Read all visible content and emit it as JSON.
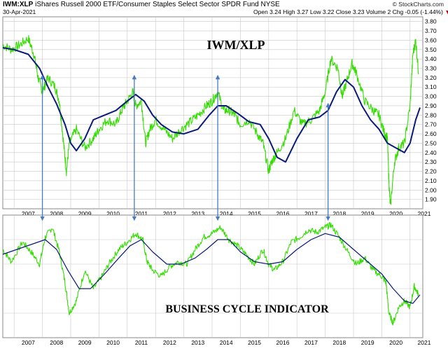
{
  "header": {
    "symbol": "IWM:XLP",
    "description": "iShares Russell 2000 ETF/Consumer Staples Select Sector SPDR Fund",
    "exchange": "NYSE",
    "brand": "© StockCharts.com",
    "date": "30-Apr-2021",
    "open_label": "Open",
    "open": "3.24",
    "high_label": "High",
    "high": "3.27",
    "low_label": "Low",
    "low": "3.22",
    "close_label": "Close",
    "close": "3.23",
    "volume_label": "Volume",
    "volume": "2",
    "chg_label": "Chg",
    "chg": "-0.05 (-1.44%)",
    "chg_marker": "▼"
  },
  "colors": {
    "price": "#33dd00",
    "ma": "#0b1a7a",
    "arrow": "#4a79c4",
    "grid": "#c8c8c8",
    "border": "#888888",
    "down": "#c00000"
  },
  "chart_data": [
    {
      "type": "line",
      "title": "IWM/XLP",
      "x_ticks": [
        "2007",
        "2008",
        "2009",
        "2010",
        "2011",
        "2012",
        "2013",
        "2014",
        "2015",
        "2016",
        "2017",
        "2018",
        "2019",
        "2020",
        "2021"
      ],
      "y_ticks": [
        "3.80",
        "3.70",
        "3.60",
        "3.50",
        "3.40",
        "3.30",
        "3.20",
        "3.10",
        "3.00",
        "2.90",
        "2.80",
        "2.70",
        "2.60",
        "2.50",
        "2.40",
        "2.30",
        "2.20",
        "2.10",
        "2.00",
        "1.90"
      ],
      "ylim": [
        1.8,
        3.85
      ],
      "xlim": [
        2006.6,
        2021.45
      ],
      "grid": true,
      "series": [
        {
          "role": "price",
          "x": [
            2006.6,
            2006.9,
            2007.2,
            2007.5,
            2007.7,
            2007.85,
            2008.0,
            2008.2,
            2008.45,
            2008.6,
            2008.75,
            2008.85,
            2008.95,
            2009.2,
            2009.5,
            2009.8,
            2010.0,
            2010.3,
            2010.6,
            2010.8,
            2011.0,
            2011.2,
            2011.3,
            2011.5,
            2011.65,
            2011.8,
            2012.0,
            2012.3,
            2012.6,
            2012.9,
            2013.2,
            2013.5,
            2013.8,
            2014.0,
            2014.2,
            2014.4,
            2014.6,
            2014.8,
            2015.0,
            2015.3,
            2015.6,
            2015.8,
            2016.0,
            2016.1,
            2016.3,
            2016.6,
            2016.9,
            2017.2,
            2017.5,
            2017.8,
            2018.0,
            2018.2,
            2018.45,
            2018.6,
            2018.75,
            2018.95,
            2019.1,
            2019.4,
            2019.7,
            2019.9,
            2020.1,
            2020.2,
            2020.25,
            2020.3,
            2020.45,
            2020.6,
            2020.8,
            2021.0,
            2021.1,
            2021.2,
            2021.3
          ],
          "values": [
            3.55,
            3.5,
            3.55,
            3.62,
            3.45,
            3.2,
            3.05,
            3.2,
            3.1,
            2.95,
            2.5,
            2.2,
            2.5,
            2.65,
            2.45,
            2.55,
            2.65,
            2.75,
            2.7,
            2.85,
            2.95,
            3.05,
            2.9,
            2.95,
            2.5,
            2.65,
            2.75,
            2.65,
            2.55,
            2.65,
            2.72,
            2.8,
            2.9,
            2.95,
            3.05,
            2.85,
            2.85,
            2.8,
            2.7,
            2.75,
            2.6,
            2.5,
            2.2,
            2.3,
            2.4,
            2.55,
            2.85,
            2.7,
            2.75,
            2.85,
            3.05,
            3.4,
            3.3,
            3.0,
            3.15,
            3.35,
            3.25,
            2.95,
            2.85,
            2.8,
            2.6,
            2.55,
            2.1,
            1.82,
            2.3,
            2.45,
            2.5,
            2.9,
            3.45,
            3.6,
            3.25
          ]
        },
        {
          "role": "moving_average",
          "x": [
            2006.6,
            2007.0,
            2007.5,
            2007.9,
            2008.2,
            2008.5,
            2008.8,
            2009.0,
            2009.2,
            2009.5,
            2009.8,
            2010.2,
            2010.6,
            2011.0,
            2011.3,
            2011.6,
            2011.9,
            2012.2,
            2012.6,
            2013.0,
            2013.5,
            2013.9,
            2014.2,
            2014.5,
            2014.9,
            2015.3,
            2015.7,
            2016.0,
            2016.3,
            2016.6,
            2017.0,
            2017.4,
            2017.8,
            2018.1,
            2018.4,
            2018.7,
            2019.0,
            2019.3,
            2019.6,
            2019.9,
            2020.2,
            2020.5,
            2020.8,
            2021.0,
            2021.2,
            2021.35
          ],
          "values": [
            3.52,
            3.5,
            3.45,
            3.3,
            3.1,
            2.92,
            2.7,
            2.5,
            2.42,
            2.55,
            2.75,
            2.8,
            2.85,
            2.95,
            3.02,
            2.95,
            2.8,
            2.7,
            2.62,
            2.6,
            2.65,
            2.8,
            2.9,
            2.9,
            2.82,
            2.73,
            2.7,
            2.55,
            2.35,
            2.3,
            2.55,
            2.75,
            2.78,
            2.85,
            3.05,
            3.18,
            3.1,
            2.9,
            2.75,
            2.65,
            2.5,
            2.45,
            2.4,
            2.5,
            2.75,
            2.88
          ]
        }
      ]
    },
    {
      "type": "line",
      "title": "BUSINESS CYCLE INDICATOR",
      "x_ticks": [
        "2007",
        "2008",
        "2009",
        "2010",
        "2011",
        "2012",
        "2013",
        "2014",
        "2015",
        "2016",
        "2017",
        "2018",
        "2019",
        "2020",
        "2021"
      ],
      "ylim": [
        0,
        1
      ],
      "xlim": [
        2006.6,
        2021.45
      ],
      "grid": true,
      "series": [
        {
          "role": "indicator",
          "x": [
            2006.6,
            2006.9,
            2007.3,
            2007.6,
            2007.9,
            2008.1,
            2008.35,
            2008.6,
            2008.8,
            2008.95,
            2009.2,
            2009.5,
            2009.8,
            2010.1,
            2010.4,
            2010.7,
            2011.0,
            2011.3,
            2011.55,
            2011.7,
            2011.9,
            2012.2,
            2012.5,
            2012.8,
            2013.1,
            2013.4,
            2013.7,
            2014.0,
            2014.3,
            2014.6,
            2014.9,
            2015.2,
            2015.5,
            2015.8,
            2016.0,
            2016.2,
            2016.5,
            2016.8,
            2017.1,
            2017.4,
            2017.7,
            2018.0,
            2018.2,
            2018.5,
            2018.8,
            2019.1,
            2019.4,
            2019.7,
            2020.0,
            2020.15,
            2020.25,
            2020.4,
            2020.6,
            2020.8,
            2021.0,
            2021.15,
            2021.3
          ],
          "values": [
            0.72,
            0.62,
            0.78,
            0.7,
            0.6,
            0.82,
            0.9,
            0.7,
            0.45,
            0.2,
            0.3,
            0.55,
            0.4,
            0.5,
            0.62,
            0.72,
            0.78,
            0.85,
            0.8,
            0.62,
            0.55,
            0.5,
            0.58,
            0.62,
            0.6,
            0.72,
            0.82,
            0.85,
            0.9,
            0.8,
            0.75,
            0.68,
            0.6,
            0.72,
            0.6,
            0.55,
            0.62,
            0.78,
            0.82,
            0.88,
            0.86,
            0.9,
            0.92,
            0.82,
            0.7,
            0.6,
            0.65,
            0.55,
            0.5,
            0.45,
            0.2,
            0.12,
            0.25,
            0.3,
            0.25,
            0.42,
            0.35
          ]
        },
        {
          "role": "moving_average",
          "x": [
            2006.6,
            2007.1,
            2007.6,
            2008.1,
            2008.5,
            2008.9,
            2009.3,
            2009.7,
            2010.2,
            2010.7,
            2011.1,
            2011.5,
            2011.9,
            2012.4,
            2012.9,
            2013.4,
            2013.8,
            2014.2,
            2014.6,
            2015.0,
            2015.5,
            2016.0,
            2016.5,
            2017.0,
            2017.5,
            2018.0,
            2018.5,
            2019.0,
            2019.5,
            2020.0,
            2020.4,
            2020.8,
            2021.1,
            2021.35
          ],
          "values": [
            0.68,
            0.72,
            0.76,
            0.8,
            0.72,
            0.55,
            0.4,
            0.4,
            0.52,
            0.65,
            0.75,
            0.8,
            0.7,
            0.6,
            0.6,
            0.65,
            0.72,
            0.8,
            0.8,
            0.7,
            0.62,
            0.6,
            0.62,
            0.72,
            0.8,
            0.85,
            0.82,
            0.72,
            0.62,
            0.52,
            0.4,
            0.3,
            0.28,
            0.35
          ]
        }
      ]
    }
  ],
  "cycle_arrows_x": [
    2008.0,
    2011.25,
    2014.2,
    2018.1
  ]
}
